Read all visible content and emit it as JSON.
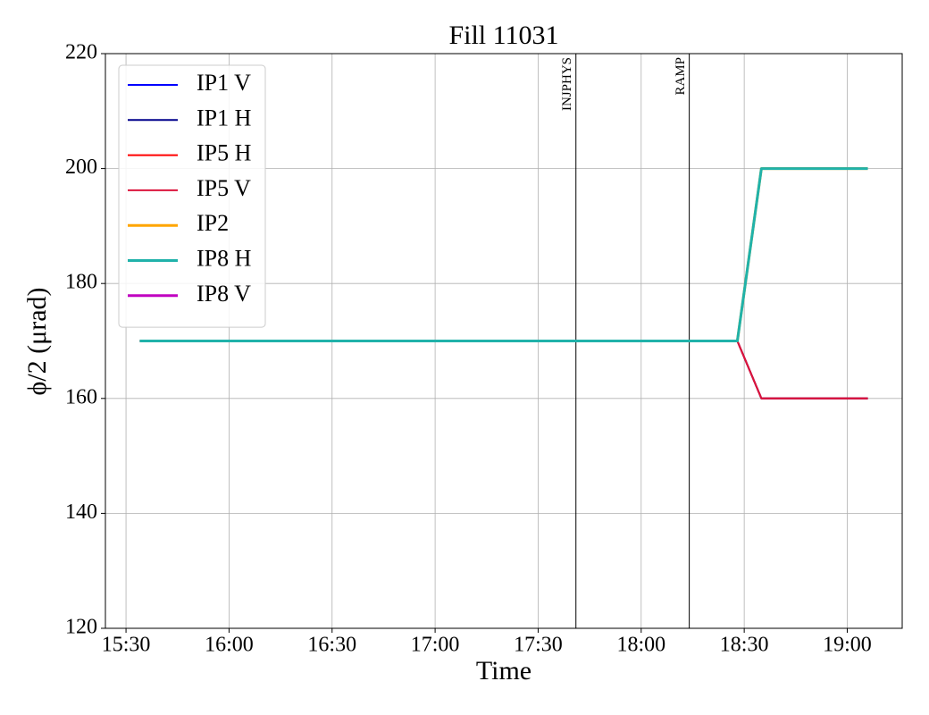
{
  "chart_data": {
    "type": "line",
    "title": "Fill 11031",
    "x_label": "Time",
    "y_label": "ϕ/2 (μrad)",
    "x": [
      "15:34",
      "18:28",
      "18:35",
      "19:06"
    ],
    "series": [
      {
        "name": "IP1 V",
        "color": "#0000ff",
        "linewidth": 2,
        "values": [
          170,
          170,
          160,
          160
        ]
      },
      {
        "name": "IP1 H",
        "color": "#00008b",
        "linewidth": 2,
        "values": [
          170,
          170,
          160,
          160
        ]
      },
      {
        "name": "IP5 H",
        "color": "#ff0000",
        "linewidth": 2,
        "values": [
          170,
          170,
          160,
          160
        ]
      },
      {
        "name": "IP5 V",
        "color": "#dc143c",
        "linewidth": 2,
        "values": [
          170,
          170,
          160,
          160
        ]
      },
      {
        "name": "IP2",
        "color": "#ffa500",
        "linewidth": 3,
        "values": [
          170,
          170,
          200,
          200
        ]
      },
      {
        "name": "IP8 H",
        "color": "#20b2aa",
        "linewidth": 3,
        "values": [
          170,
          170,
          200,
          200
        ]
      },
      {
        "name": "IP8 V",
        "color": "#c000c0",
        "linewidth": 3,
        "values": [
          null,
          null,
          null,
          null
        ]
      }
    ],
    "events": [
      {
        "label": "INJPHYS",
        "x": "17:41"
      },
      {
        "label": "RAMP",
        "x": "18:14"
      }
    ],
    "xlim": [
      "15:24",
      "19:16"
    ],
    "xticks": [
      "15:30",
      "16:00",
      "16:30",
      "17:00",
      "17:30",
      "18:00",
      "18:30",
      "19:00"
    ],
    "ylim": [
      120,
      220
    ],
    "yticks": [
      120,
      140,
      160,
      180,
      200,
      220
    ],
    "grid": true,
    "legend": "upper left"
  }
}
